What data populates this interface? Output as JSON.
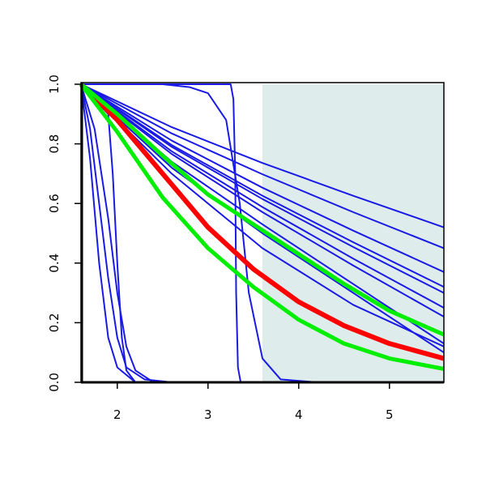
{
  "chart_data": {
    "type": "line",
    "xlim": [
      1.6,
      5.6
    ],
    "ylim": [
      0,
      1
    ],
    "xticks": [
      2,
      3,
      4,
      5
    ],
    "yticks": [
      {
        "value": 0,
        "label": "0.0"
      },
      0.2,
      0.4,
      0.6,
      0.8,
      {
        "value": 1,
        "label": "1.0"
      }
    ],
    "highlight": {
      "xmin": 3.6,
      "xmax": 5.6,
      "color": "#deeceb"
    },
    "series": [
      {
        "color": "#1a1ae6",
        "width": 2,
        "x": [
          1.6,
          2.6,
          3.6,
          4.6,
          5.6
        ],
        "values": [
          1,
          0.856,
          0.736,
          0.626,
          0.52
        ]
      },
      {
        "color": "#1a1ae6",
        "width": 2,
        "x": [
          1.6,
          2.6,
          3.6,
          4.6,
          5.6
        ],
        "values": [
          1,
          0.835,
          0.698,
          0.571,
          0.45
        ]
      },
      {
        "color": "#1a1ae6",
        "width": 2,
        "x": [
          1.6,
          2.6,
          3.6,
          4.6,
          5.6
        ],
        "values": [
          1,
          0.811,
          0.653,
          0.509,
          0.37
        ]
      },
      {
        "color": "#1a1ae6",
        "width": 2,
        "x": [
          1.6,
          2.6,
          3.6,
          4.6,
          5.6
        ],
        "values": [
          1,
          0.796,
          0.626,
          0.47,
          0.32
        ]
      },
      {
        "color": "#1a1ae6",
        "width": 2,
        "x": [
          1.6,
          2.6,
          3.6,
          4.6,
          5.6
        ],
        "values": [
          1,
          0.79,
          0.615,
          0.454,
          0.3
        ]
      },
      {
        "color": "#1a1ae6",
        "width": 2,
        "x": [
          1.6,
          2.6,
          3.6,
          4.6,
          5.6
        ],
        "values": [
          1,
          0.775,
          0.588,
          0.415,
          0.25
        ]
      },
      {
        "color": "#1a1ae6",
        "width": 2,
        "x": [
          1.6,
          2.6,
          3.6,
          4.6,
          5.6
        ],
        "values": [
          1,
          0.766,
          0.571,
          0.392,
          0.22
        ]
      },
      {
        "color": "#1a1ae6",
        "width": 2,
        "x": [
          1.6,
          2.6,
          3.6,
          4.6,
          5.6
        ],
        "values": [
          1,
          0.74,
          0.53,
          0.33,
          0.13
        ]
      },
      {
        "color": "#1a1ae6",
        "width": 2,
        "x": [
          1.6,
          2.6,
          3.6,
          4.6,
          5.6
        ],
        "values": [
          1,
          0.72,
          0.5,
          0.3,
          0.1
        ]
      },
      {
        "color": "#1a1ae6",
        "width": 2,
        "x": [
          1.6,
          2.6,
          3.6,
          4.6,
          5.6
        ],
        "values": [
          1,
          0.7,
          0.45,
          0.26,
          0.12
        ]
      },
      {
        "color": "#1a1ae6",
        "width": 2,
        "x": [
          1.6,
          3.25,
          3.28,
          3.3,
          3.31,
          3.33,
          3.36,
          5.6
        ],
        "values": [
          1,
          1,
          0.95,
          0.7,
          0.3,
          0.05,
          0,
          0
        ]
      },
      {
        "color": "#1a1ae6",
        "width": 2,
        "x": [
          1.6,
          2.5,
          2.8,
          3.0,
          3.2,
          3.35,
          3.45,
          3.6,
          3.8,
          4.2,
          5.6
        ],
        "values": [
          1,
          1,
          0.99,
          0.97,
          0.88,
          0.6,
          0.3,
          0.08,
          0.01,
          0,
          0
        ]
      },
      {
        "color": "#1a1ae6",
        "width": 2,
        "x": [
          1.6,
          1.9,
          1.95,
          2.0,
          2.05,
          2.1,
          2.2,
          5.6
        ],
        "values": [
          1,
          0.9,
          0.7,
          0.4,
          0.15,
          0.04,
          0,
          0
        ]
      },
      {
        "color": "#1a1ae6",
        "width": 2,
        "x": [
          1.6,
          1.7,
          1.8,
          1.9,
          2.0,
          2.2,
          5.6
        ],
        "values": [
          1,
          0.75,
          0.4,
          0.15,
          0.05,
          0,
          0
        ]
      },
      {
        "color": "#1a1ae6",
        "width": 2,
        "x": [
          1.6,
          1.7,
          1.8,
          1.9,
          2.0,
          2.1,
          2.3,
          2.6,
          5.6
        ],
        "values": [
          1,
          0.85,
          0.6,
          0.35,
          0.15,
          0.05,
          0.01,
          0,
          0
        ]
      },
      {
        "color": "#1a1ae6",
        "width": 2,
        "x": [
          1.6,
          1.75,
          1.9,
          2.0,
          2.1,
          2.2,
          2.4,
          5.6
        ],
        "values": [
          1,
          0.85,
          0.55,
          0.3,
          0.12,
          0.04,
          0,
          0
        ]
      },
      {
        "color": "#ff0000",
        "width": 6,
        "x": [
          1.6,
          2,
          2.5,
          3,
          3.5,
          4,
          4.5,
          5,
          5.6
        ],
        "values": [
          1,
          0.88,
          0.7,
          0.52,
          0.38,
          0.27,
          0.19,
          0.13,
          0.08
        ]
      },
      {
        "color": "#00ee00",
        "width": 5,
        "x": [
          1.6,
          2,
          2.5,
          3,
          3.5,
          4,
          4.5,
          5,
          5.6
        ],
        "values": [
          1,
          0.84,
          0.62,
          0.45,
          0.32,
          0.21,
          0.13,
          0.08,
          0.045
        ]
      },
      {
        "color": "#00ee00",
        "width": 5,
        "x": [
          1.6,
          2,
          2.5,
          3,
          3.5,
          4,
          4.5,
          5,
          5.6
        ],
        "values": [
          1,
          0.9,
          0.76,
          0.63,
          0.53,
          0.43,
          0.33,
          0.24,
          0.16
        ]
      }
    ]
  }
}
